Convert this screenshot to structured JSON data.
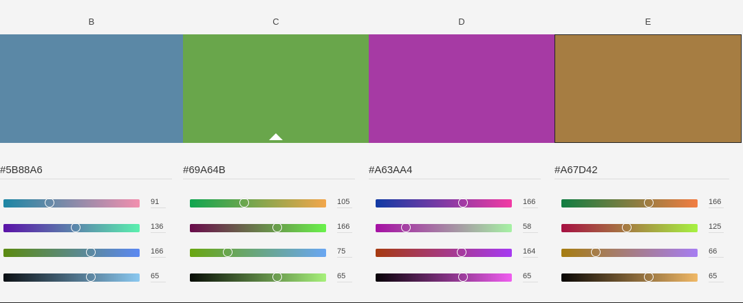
{
  "columns": [
    {
      "label": "B",
      "hex": "#5B88A6",
      "color": "#5B88A6",
      "selected": false,
      "outlined": false,
      "sliders": [
        {
          "value": "91",
          "pos": 0.34,
          "from": "#1c86a4",
          "to": "#f28fae"
        },
        {
          "value": "136",
          "pos": 0.53,
          "from": "#5b12a8",
          "to": "#5bf0ae"
        },
        {
          "value": "166",
          "pos": 0.64,
          "from": "#5b8a10",
          "to": "#5b88f2"
        },
        {
          "value": "65",
          "pos": 0.64,
          "from": "#0c1014",
          "to": "#8ac8f0"
        }
      ]
    },
    {
      "label": "C",
      "hex": "#69A64B",
      "color": "#69A64B",
      "selected": true,
      "outlined": false,
      "sliders": [
        {
          "value": "105",
          "pos": 0.4,
          "from": "#10a650",
          "to": "#f2a64b"
        },
        {
          "value": "166",
          "pos": 0.64,
          "from": "#690a4b",
          "to": "#69f24b"
        },
        {
          "value": "75",
          "pos": 0.28,
          "from": "#69a610",
          "to": "#69a6f2"
        },
        {
          "value": "65",
          "pos": 0.64,
          "from": "#080c06",
          "to": "#a6f07a"
        }
      ]
    },
    {
      "label": "D",
      "hex": "#A63AA4",
      "color": "#A63AA4",
      "selected": false,
      "outlined": false,
      "sliders": [
        {
          "value": "166",
          "pos": 0.64,
          "from": "#103aa4",
          "to": "#f23aa4"
        },
        {
          "value": "58",
          "pos": 0.22,
          "from": "#a610a4",
          "to": "#a6f2a4"
        },
        {
          "value": "164",
          "pos": 0.63,
          "from": "#a63a10",
          "to": "#a63af2"
        },
        {
          "value": "65",
          "pos": 0.64,
          "from": "#080208",
          "to": "#f05ef0"
        }
      ]
    },
    {
      "label": "E",
      "hex": "#A67D42",
      "color": "#A67D42",
      "selected": false,
      "outlined": true,
      "sliders": [
        {
          "value": "166",
          "pos": 0.64,
          "from": "#107d42",
          "to": "#f27d42"
        },
        {
          "value": "125",
          "pos": 0.48,
          "from": "#a61042",
          "to": "#a6f242"
        },
        {
          "value": "66",
          "pos": 0.25,
          "from": "#a67d10",
          "to": "#a67df2"
        },
        {
          "value": "65",
          "pos": 0.64,
          "from": "#080604",
          "to": "#f0b866"
        }
      ]
    }
  ]
}
